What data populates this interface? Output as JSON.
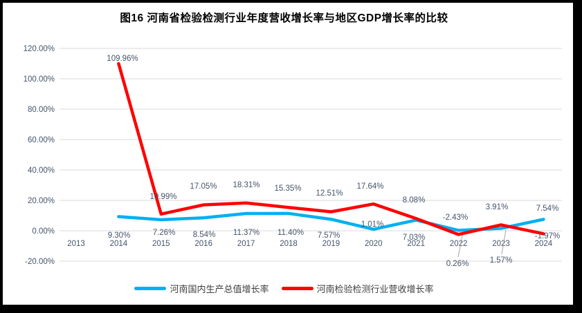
{
  "title": "图16  河南省检验检测行业年度营收增长率与地区GDP增长率的比较",
  "chart_data": {
    "type": "line",
    "categories": [
      "2013",
      "2014",
      "2015",
      "2016",
      "2017",
      "2018",
      "2019",
      "2020",
      "2021",
      "2022",
      "2023",
      "2024"
    ],
    "series": [
      {
        "name": "河南国内生产总值增长率",
        "color": "#00B0F0",
        "values": [
          null,
          9.3,
          7.26,
          8.54,
          11.37,
          11.4,
          7.57,
          1.01,
          7.03,
          0.26,
          1.57,
          7.54
        ],
        "labels": [
          "",
          "9.30%",
          "7.26%",
          "8.54%",
          "11.37%",
          "11.40%",
          "7.57%",
          "1.01%",
          "7.03%",
          "0.26%",
          "1.57%",
          "7.54%"
        ]
      },
      {
        "name": "河南检验检测行业营收增长率",
        "color": "#FF0000",
        "values": [
          null,
          109.96,
          10.99,
          17.05,
          18.31,
          15.35,
          12.51,
          17.64,
          8.08,
          -2.43,
          3.91,
          -1.97
        ],
        "labels": [
          "",
          "109.96%",
          "10.99%",
          "17.05%",
          "18.31%",
          "15.35%",
          "12.51%",
          "17.64%",
          "8.08%",
          "-2.43%",
          "3.91%",
          "-1.97%"
        ]
      }
    ],
    "title": "图16  河南省检验检测行业年度营收增长率与地区GDP增长率的比较",
    "xlabel": "",
    "ylabel": "",
    "ylim": [
      -20,
      120
    ],
    "ytick_step": 20,
    "ytick_labels": [
      "120.00%",
      "100.00%",
      "80.00%",
      "60.00%",
      "40.00%",
      "20.00%",
      "0.00%",
      "-20.00%"
    ],
    "ytick_values": [
      120,
      100,
      80,
      60,
      40,
      20,
      0,
      -20
    ],
    "grid": true,
    "legend_position": "bottom"
  },
  "colors": {
    "grid": "#D9D9D9",
    "axis_label": "#44546A",
    "data_label": "#44546A",
    "leader_line": "#A6A6A6",
    "frame": "#000000",
    "background": "#FFFFFF"
  }
}
